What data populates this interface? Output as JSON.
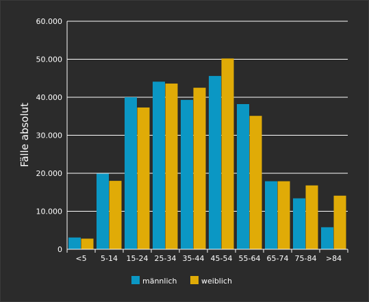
{
  "chart_data": {
    "type": "bar",
    "ylabel": "Fälle absolut",
    "xlabel": "",
    "ylim": [
      0,
      60000
    ],
    "yticks": [
      0,
      10000,
      20000,
      30000,
      40000,
      50000,
      60000
    ],
    "ytick_labels": [
      "0",
      "10.000",
      "20.000",
      "30.000",
      "40.000",
      "50.000",
      "60.000"
    ],
    "grid": "horizontal",
    "legend_position": "bottom",
    "categories": [
      "<5",
      "5-14",
      "15-24",
      "25-34",
      "35-44",
      "45-54",
      "55-64",
      "65-74",
      "75-84",
      ">84"
    ],
    "series": [
      {
        "name": "männlich",
        "color": "#0b97c4",
        "values": [
          3100,
          19900,
          40000,
          44100,
          39300,
          45600,
          38200,
          17900,
          13400,
          5800
        ]
      },
      {
        "name": "weiblich",
        "color": "#e0ab07",
        "values": [
          2800,
          18000,
          37300,
          43600,
          42500,
          50200,
          35100,
          17900,
          16800,
          14100
        ]
      }
    ]
  }
}
